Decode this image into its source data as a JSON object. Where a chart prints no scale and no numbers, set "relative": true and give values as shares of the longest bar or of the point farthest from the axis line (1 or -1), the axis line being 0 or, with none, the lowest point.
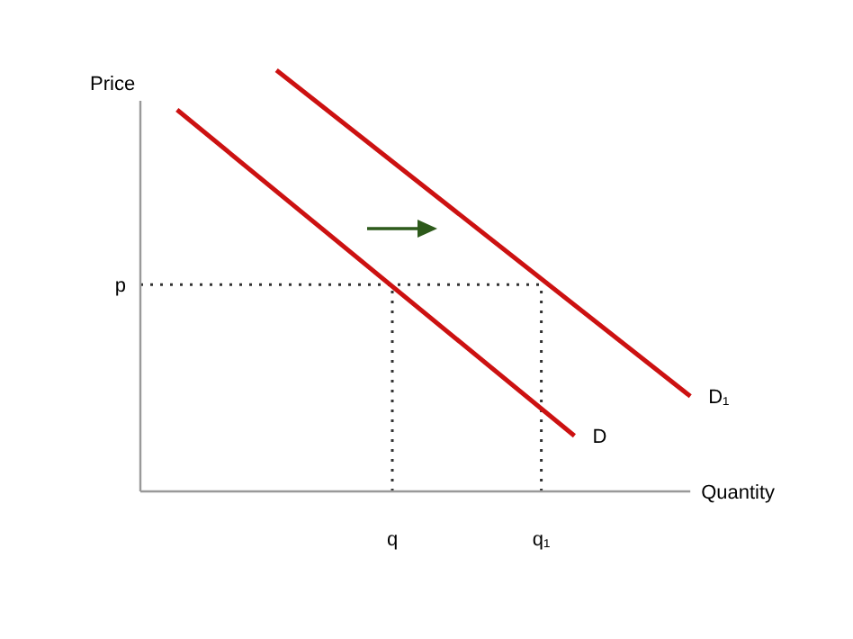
{
  "chart_data": {
    "type": "line",
    "relative": true,
    "xlabel": "Quantity",
    "ylabel": "Price",
    "tick_labels": "x",
    "categories": [
      null,
      null,
      null,
      null,
      null,
      null,
      null,
      null,
      null,
      null,
      null,
      null,
      null,
      null,
      null,
      "q",
      null,
      null,
      null,
      null,
      null,
      null,
      null,
      null,
      "q₁",
      null,
      null,
      null,
      null,
      null,
      null,
      null,
      null,
      null
    ],
    "line_style": "solid",
    "marker": "none",
    "series": [
      {
        "name": "D",
        "color": "#cc1111",
        "values": [
          null,
          null,
          0.906,
          null,
          null,
          null,
          null,
          null,
          null,
          null,
          null,
          null,
          null,
          null,
          null,
          null,
          null,
          null,
          null,
          null,
          null,
          null,
          null,
          null,
          null,
          null,
          0.132,
          null,
          null,
          null,
          null,
          null,
          null,
          null
        ]
      },
      {
        "name": "D₁",
        "color": "#cc1111",
        "values": [
          null,
          null,
          null,
          null,
          null,
          null,
          null,
          null,
          1,
          null,
          null,
          null,
          null,
          null,
          null,
          null,
          null,
          null,
          null,
          null,
          null,
          null,
          null,
          null,
          null,
          null,
          null,
          null,
          null,
          null,
          null,
          null,
          null,
          0.226
        ]
      }
    ],
    "ref_lines": [
      {
        "axis": "y",
        "value": 0.491,
        "label": "p",
        "line_style": "dotted",
        "color": "#333333"
      },
      {
        "axis": "x",
        "value": "q",
        "line_style": "dotted",
        "color": "#333333"
      },
      {
        "axis": "x",
        "value": "q₁",
        "line_style": "dotted",
        "color": "#333333"
      }
    ]
  }
}
